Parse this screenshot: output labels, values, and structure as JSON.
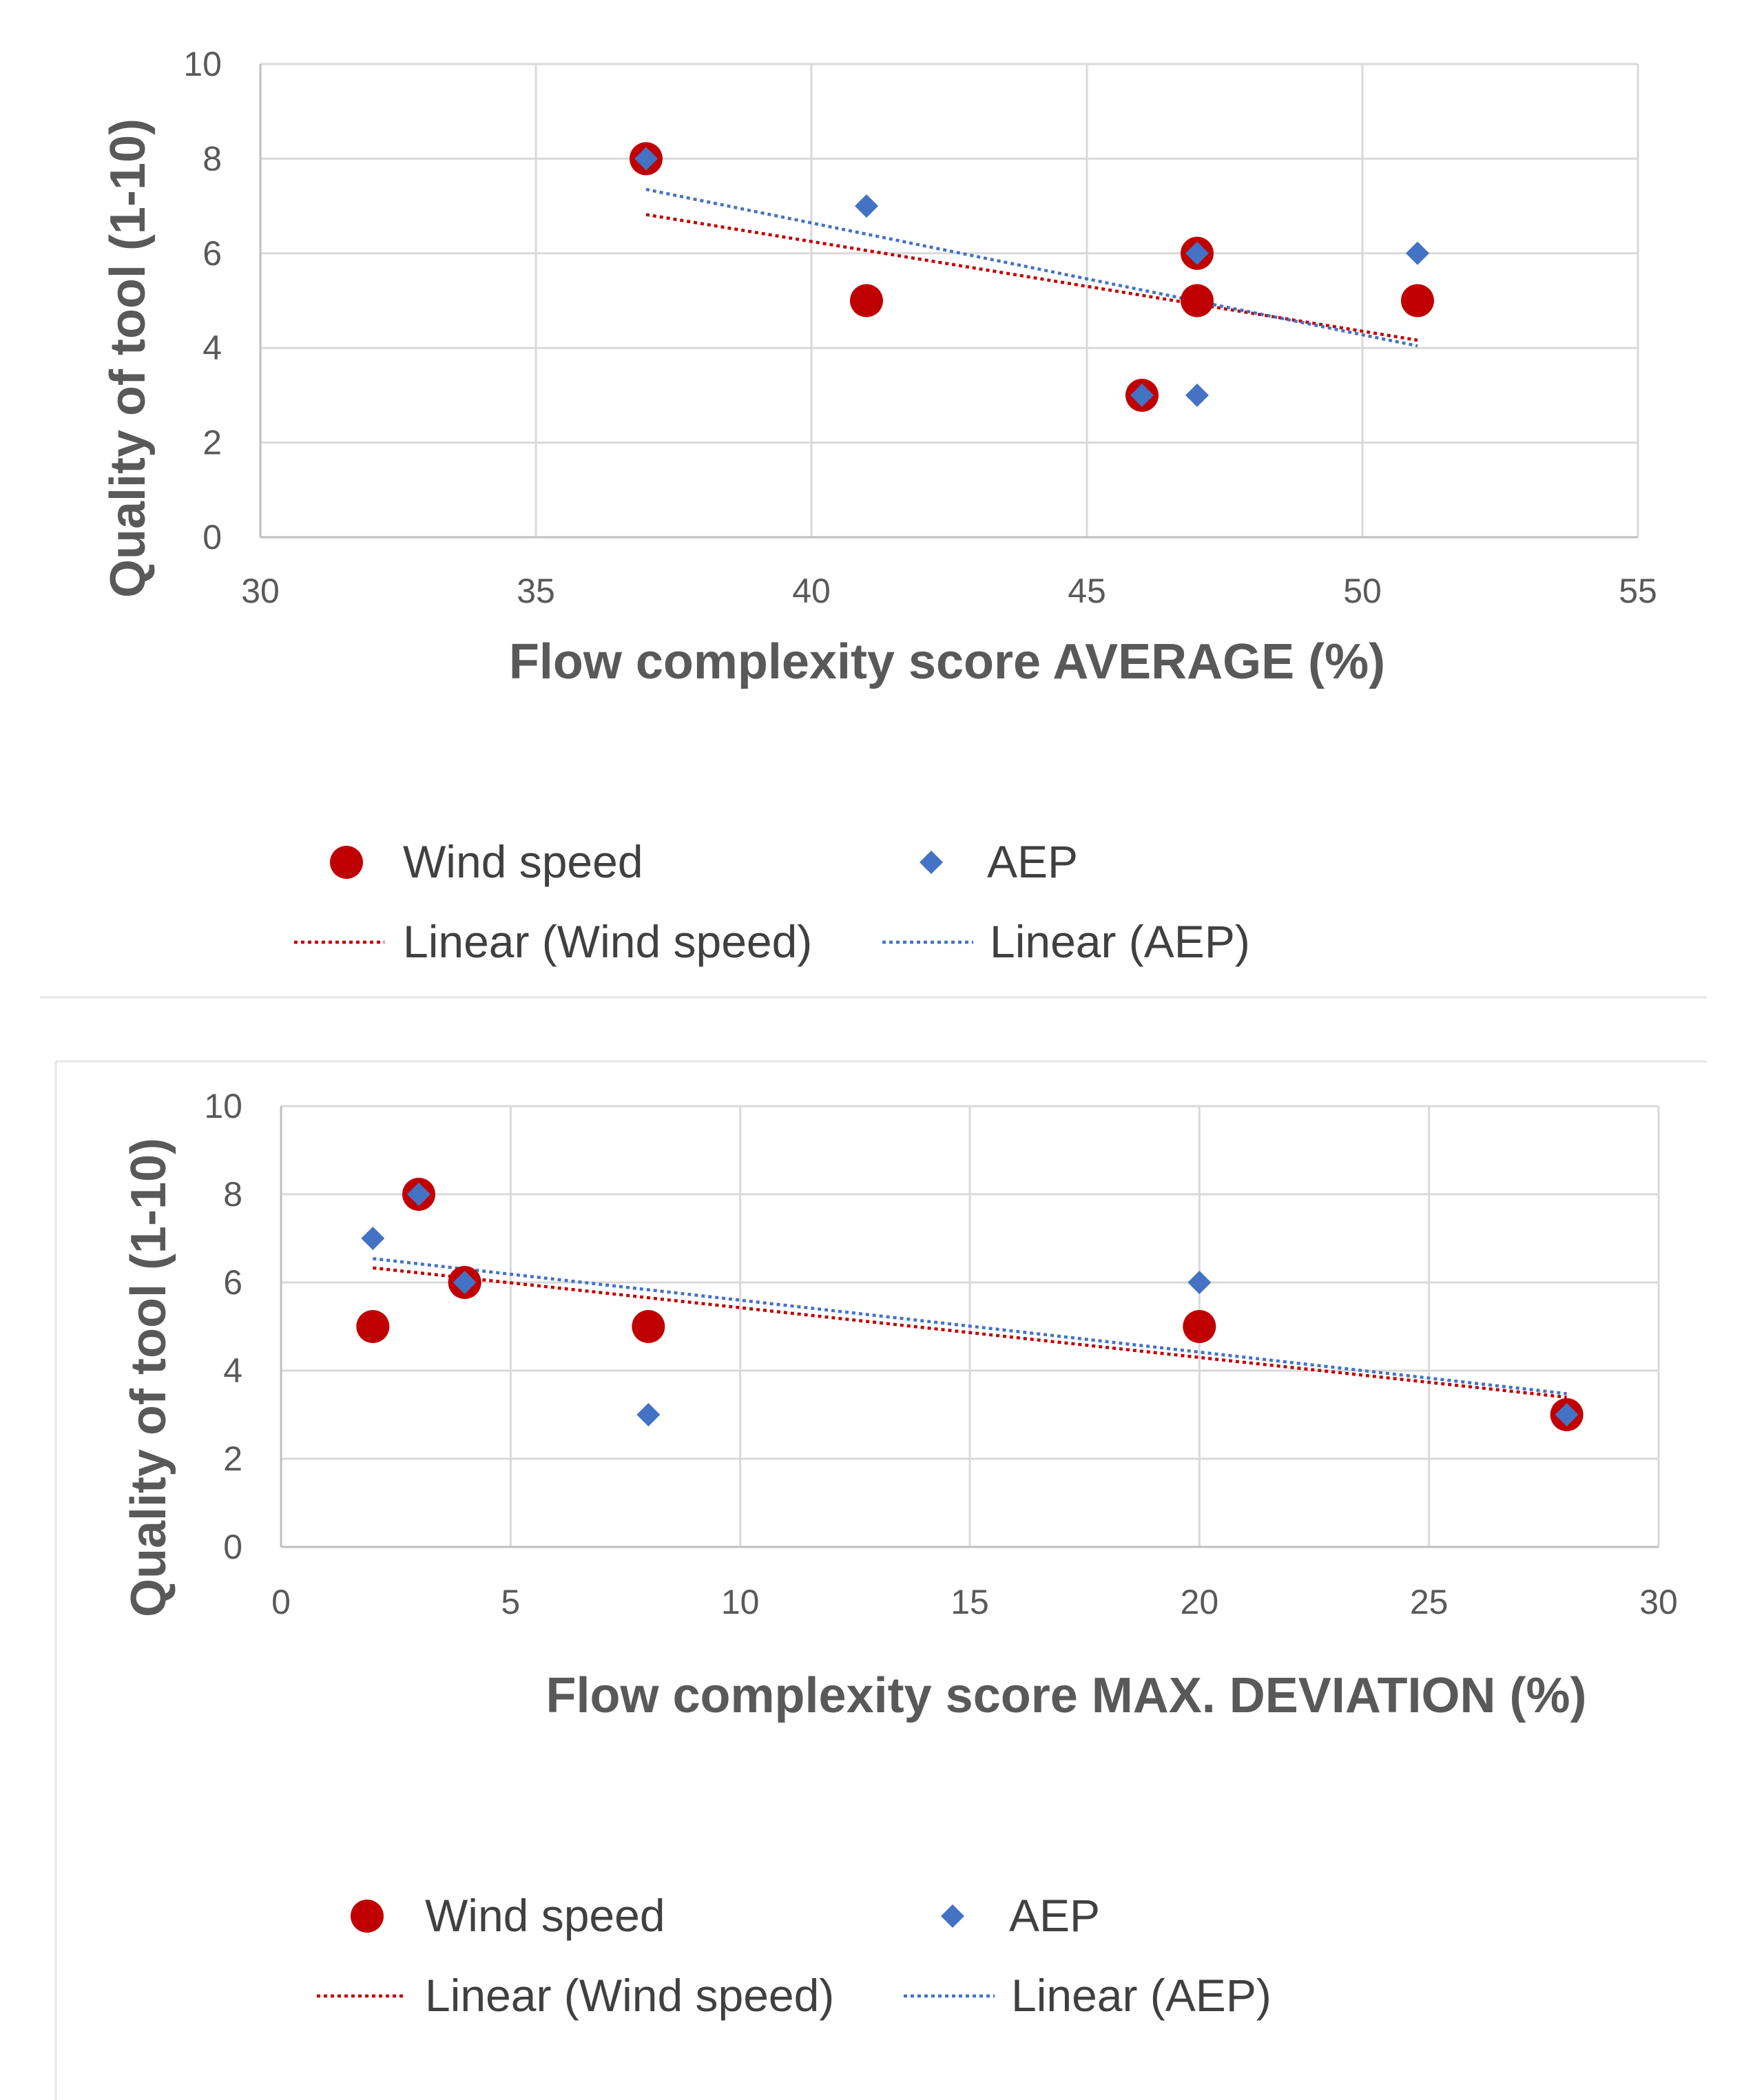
{
  "colors": {
    "wind_speed": "#c00000",
    "aep": "#4472c4",
    "trend_wind_speed": "#c00000",
    "trend_aep": "#4472c4"
  },
  "chart_data": [
    {
      "type": "scatter",
      "xlabel": "Flow complexity score AVERAGE (%)",
      "ylabel": "Quality of tool (1-10)",
      "xlim": [
        30,
        55
      ],
      "ylim": [
        0,
        10
      ],
      "xticks": [
        30,
        35,
        40,
        45,
        50,
        55
      ],
      "yticks": [
        0,
        2,
        4,
        6,
        8,
        10
      ],
      "x_tick_labels": [
        "30",
        "35",
        "40",
        "45",
        "50",
        "55"
      ],
      "y_tick_labels": [
        "0",
        "2",
        "4",
        "6",
        "8",
        "10"
      ],
      "grid": true,
      "series": [
        {
          "name": "Wind speed",
          "marker": "circle",
          "points": [
            [
              37,
              8
            ],
            [
              41,
              5
            ],
            [
              46,
              3
            ],
            [
              47,
              6
            ],
            [
              47,
              5
            ],
            [
              51,
              5
            ]
          ]
        },
        {
          "name": "AEP",
          "marker": "diamond",
          "points": [
            [
              37,
              8
            ],
            [
              41,
              7
            ],
            [
              46,
              3
            ],
            [
              47,
              6
            ],
            [
              47,
              3
            ],
            [
              51,
              6
            ]
          ]
        }
      ],
      "trendlines": [
        {
          "name": "Linear (Wind speed)",
          "of": "Wind speed",
          "x_range": [
            37,
            51
          ]
        },
        {
          "name": "Linear (AEP)",
          "of": "AEP",
          "x_range": [
            37,
            51
          ]
        }
      ],
      "legend": {
        "position": "bottom",
        "entries": [
          "Wind speed",
          "AEP",
          "Linear (Wind speed)",
          "Linear (AEP)"
        ]
      }
    },
    {
      "type": "scatter",
      "xlabel": "Flow complexity score MAX. DEVIATION (%)",
      "ylabel": "Quality of tool (1-10)",
      "xlim": [
        0,
        30
      ],
      "ylim": [
        0,
        10
      ],
      "xticks": [
        0,
        5,
        10,
        15,
        20,
        25,
        30
      ],
      "yticks": [
        0,
        2,
        4,
        6,
        8,
        10
      ],
      "x_tick_labels": [
        "0",
        "5",
        "10",
        "15",
        "20",
        "25",
        "30"
      ],
      "y_tick_labels": [
        "0",
        "2",
        "4",
        "6",
        "8",
        "10"
      ],
      "grid": true,
      "series": [
        {
          "name": "Wind speed",
          "marker": "circle",
          "points": [
            [
              2,
              5
            ],
            [
              3,
              8
            ],
            [
              4,
              6
            ],
            [
              8,
              5
            ],
            [
              20,
              5
            ],
            [
              28,
              3
            ]
          ]
        },
        {
          "name": "AEP",
          "marker": "diamond",
          "points": [
            [
              2,
              7
            ],
            [
              3,
              8
            ],
            [
              4,
              6
            ],
            [
              8,
              3
            ],
            [
              20,
              6
            ],
            [
              28,
              3
            ]
          ]
        }
      ],
      "trendlines": [
        {
          "name": "Linear (Wind speed)",
          "of": "Wind speed",
          "x_range": [
            2,
            28
          ]
        },
        {
          "name": "Linear (AEP)",
          "of": "AEP",
          "x_range": [
            2,
            28
          ]
        }
      ],
      "legend": {
        "position": "bottom",
        "entries": [
          "Wind speed",
          "AEP",
          "Linear (Wind speed)",
          "Linear (AEP)"
        ]
      }
    }
  ]
}
